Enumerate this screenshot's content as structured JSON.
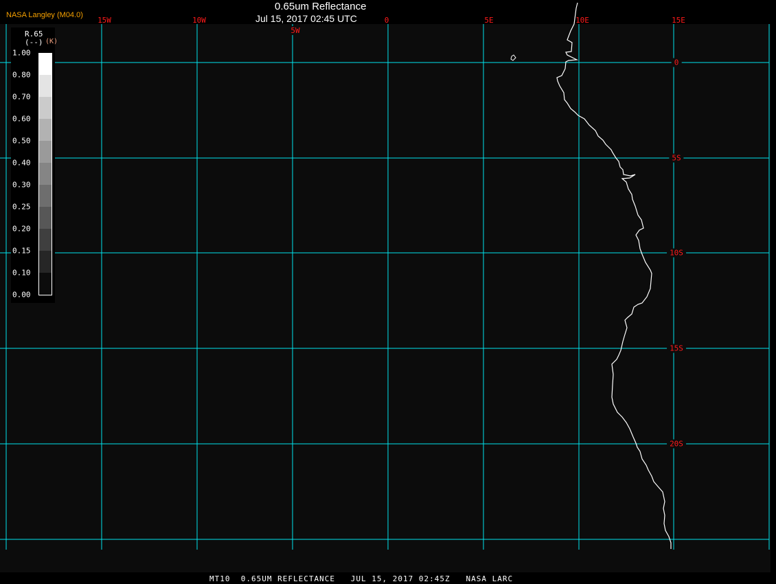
{
  "header": {
    "title": "0.65um Reflectance",
    "datetime": "Jul 15, 2017 02:45 UTC",
    "producer": "NASA Langley (M04.0)"
  },
  "map": {
    "grid_color": "#00e5ee",
    "label_color": "#ff1a1a",
    "coastline_color": "#ffffff",
    "longitude_labels": [
      "15W",
      "10W",
      "5W",
      "0",
      "5E",
      "10E",
      "15E"
    ],
    "latitude_labels": [
      "0",
      "5S",
      "10S",
      "15S",
      "20S"
    ]
  },
  "legend": {
    "variable": "R.65",
    "units": "(--)",
    "unit_note": "(K)",
    "ticks": [
      "1.00",
      "0.80",
      "0.70",
      "0.60",
      "0.50",
      "0.40",
      "0.30",
      "0.25",
      "0.20",
      "0.15",
      "0.10",
      "0.00"
    ],
    "colors": [
      "#ffffff",
      "#e4e4e4",
      "#cbcbcb",
      "#b2b2b2",
      "#9a9a9a",
      "#858585",
      "#6e6e6e",
      "#575757",
      "#3f3f3f",
      "#262626",
      "#0c0c0c"
    ]
  },
  "footer": {
    "text": "MT10  0.65UM REFLECTANCE   JUL 15, 2017 02:45Z   NASA LARC"
  }
}
